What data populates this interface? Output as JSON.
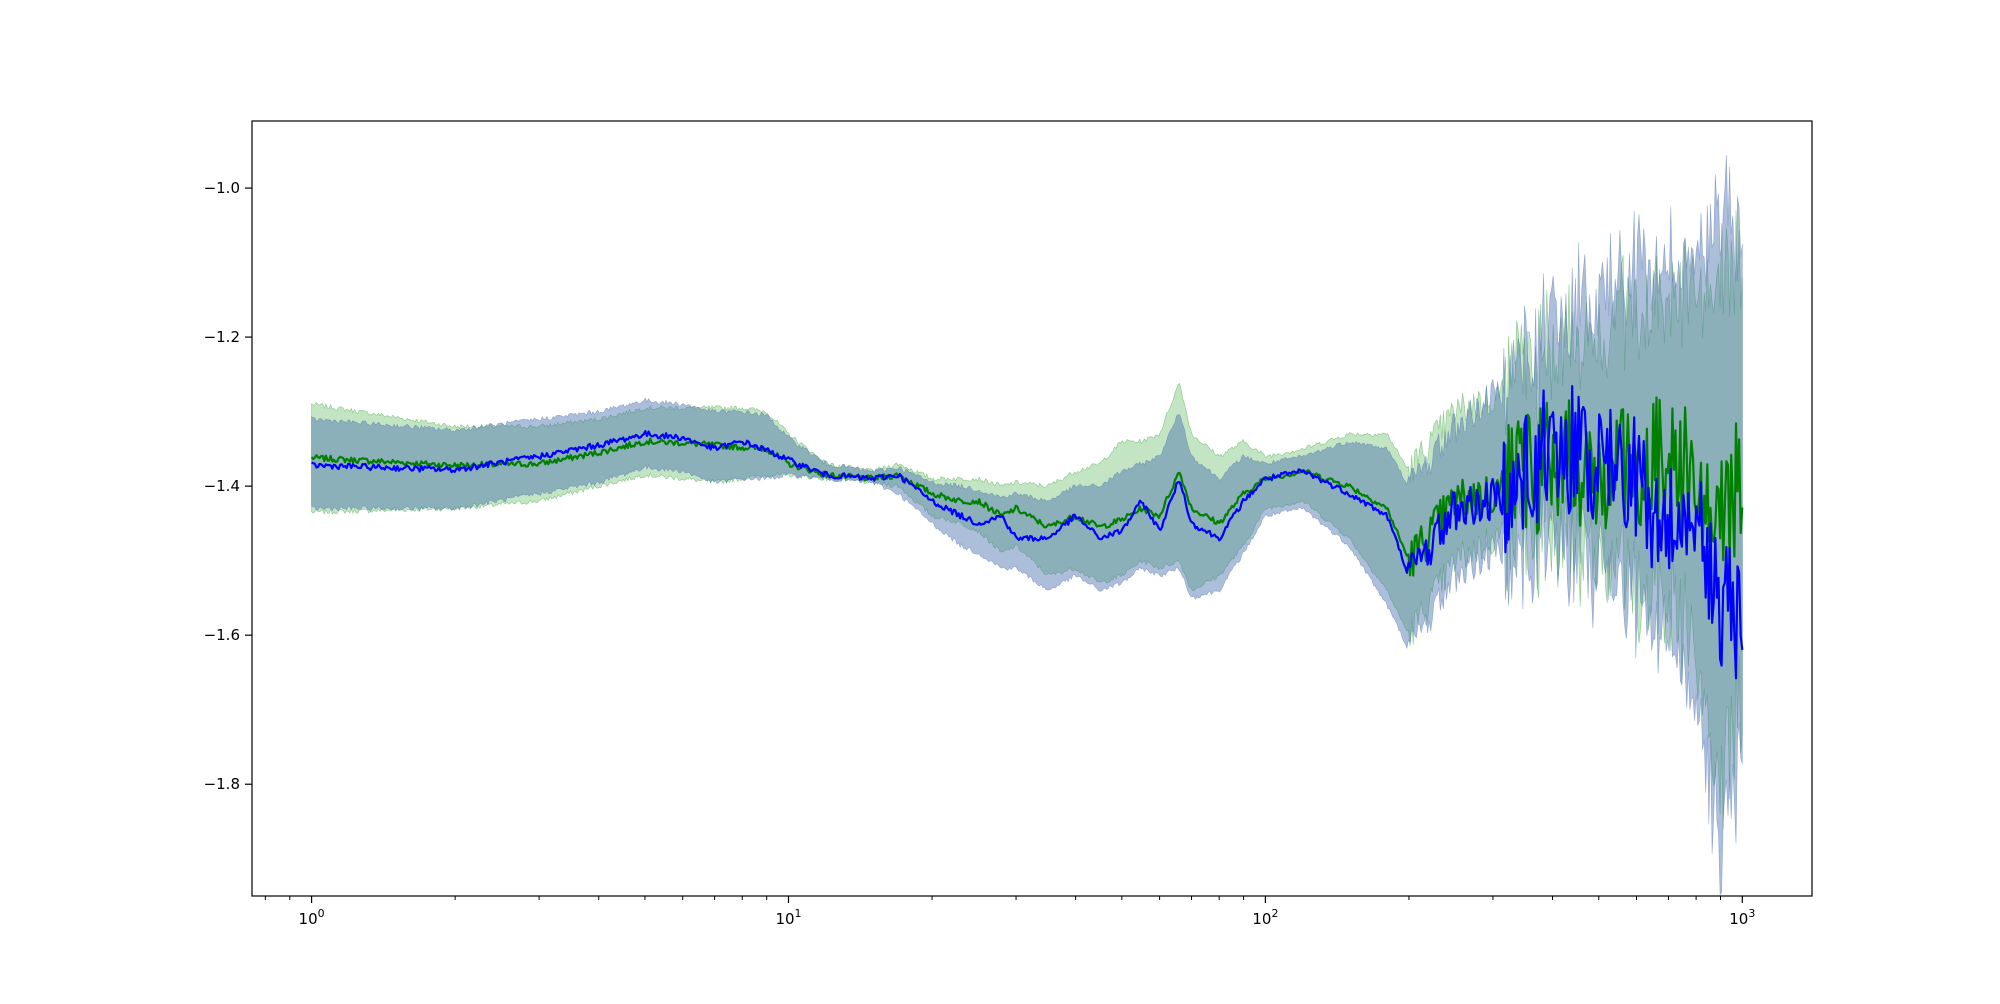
{
  "chart_data": {
    "type": "line",
    "title": "",
    "xlabel": "",
    "ylabel": "",
    "xscale": "log",
    "xlim": [
      0.75,
      1400
    ],
    "ylim": [
      -1.95,
      -0.91
    ],
    "grid": false,
    "legend": "none",
    "x_ticks": [
      {
        "value": 1,
        "base": "10",
        "exp": "0"
      },
      {
        "value": 10,
        "base": "10",
        "exp": "1"
      },
      {
        "value": 100,
        "base": "10",
        "exp": "2"
      },
      {
        "value": 1000,
        "base": "10",
        "exp": "3"
      }
    ],
    "y_ticks": [
      {
        "value": -1.0,
        "label": "−1.0"
      },
      {
        "value": -1.2,
        "label": "−1.2"
      },
      {
        "value": -1.4,
        "label": "−1.4"
      },
      {
        "value": -1.6,
        "label": "−1.6"
      },
      {
        "value": -1.8,
        "label": "−1.8"
      }
    ],
    "series": [
      {
        "color": "#008000",
        "band_color": "#2ca02c",
        "x": [
          1,
          2,
          3,
          4,
          5,
          6,
          7,
          8,
          9,
          10,
          12,
          15,
          17,
          20,
          23,
          25,
          28,
          30,
          35,
          40,
          45,
          50,
          55,
          60,
          66,
          70,
          80,
          90,
          100,
          120,
          150,
          180,
          200,
          250,
          300,
          350,
          400,
          500,
          600,
          700,
          800,
          900,
          1000
        ],
        "y": [
          -1.362,
          -1.372,
          -1.37,
          -1.355,
          -1.34,
          -1.342,
          -1.345,
          -1.348,
          -1.35,
          -1.37,
          -1.385,
          -1.39,
          -1.385,
          -1.41,
          -1.42,
          -1.42,
          -1.44,
          -1.43,
          -1.455,
          -1.44,
          -1.455,
          -1.445,
          -1.43,
          -1.44,
          -1.38,
          -1.43,
          -1.45,
          -1.41,
          -1.39,
          -1.38,
          -1.4,
          -1.43,
          -1.5,
          -1.42,
          -1.41,
          -1.38,
          -1.37,
          -1.38,
          -1.37,
          -1.36,
          -1.4,
          -1.45,
          -1.38
        ],
        "lower": [
          -1.435,
          -1.43,
          -1.42,
          -1.4,
          -1.385,
          -1.39,
          -1.395,
          -1.39,
          -1.385,
          -1.385,
          -1.39,
          -1.395,
          -1.4,
          -1.44,
          -1.45,
          -1.46,
          -1.49,
          -1.48,
          -1.52,
          -1.51,
          -1.53,
          -1.52,
          -1.5,
          -1.51,
          -1.5,
          -1.54,
          -1.52,
          -1.48,
          -1.43,
          -1.42,
          -1.47,
          -1.54,
          -1.6,
          -1.5,
          -1.47,
          -1.45,
          -1.44,
          -1.46,
          -1.5,
          -1.52,
          -1.6,
          -1.78,
          -1.65
        ],
        "upper": [
          -1.29,
          -1.32,
          -1.32,
          -1.31,
          -1.295,
          -1.295,
          -1.295,
          -1.295,
          -1.3,
          -1.33,
          -1.37,
          -1.38,
          -1.37,
          -1.39,
          -1.39,
          -1.39,
          -1.4,
          -1.395,
          -1.4,
          -1.38,
          -1.37,
          -1.34,
          -1.34,
          -1.33,
          -1.26,
          -1.33,
          -1.36,
          -1.34,
          -1.36,
          -1.35,
          -1.33,
          -1.33,
          -1.38,
          -1.3,
          -1.28,
          -1.26,
          -1.25,
          -1.22,
          -1.18,
          -1.17,
          -1.15,
          -1.15,
          -1.13
        ]
      },
      {
        "color": "#0000ff",
        "band_color": "#4a6fb0",
        "x": [
          1,
          2,
          3,
          4,
          5,
          6,
          7,
          8,
          9,
          10,
          12,
          15,
          17,
          20,
          23,
          25,
          28,
          30,
          35,
          40,
          45,
          50,
          55,
          60,
          66,
          70,
          80,
          90,
          100,
          120,
          150,
          180,
          200,
          250,
          300,
          350,
          400,
          500,
          600,
          700,
          800,
          900,
          1000
        ],
        "y": [
          -1.372,
          -1.378,
          -1.36,
          -1.345,
          -1.33,
          -1.335,
          -1.35,
          -1.34,
          -1.352,
          -1.365,
          -1.385,
          -1.39,
          -1.385,
          -1.42,
          -1.44,
          -1.45,
          -1.44,
          -1.47,
          -1.47,
          -1.44,
          -1.47,
          -1.46,
          -1.42,
          -1.46,
          -1.39,
          -1.45,
          -1.47,
          -1.42,
          -1.39,
          -1.38,
          -1.41,
          -1.44,
          -1.52,
          -1.43,
          -1.42,
          -1.38,
          -1.35,
          -1.36,
          -1.4,
          -1.45,
          -1.42,
          -1.55,
          -1.6
        ],
        "lower": [
          -1.43,
          -1.43,
          -1.41,
          -1.395,
          -1.375,
          -1.38,
          -1.395,
          -1.39,
          -1.39,
          -1.385,
          -1.39,
          -1.395,
          -1.41,
          -1.45,
          -1.48,
          -1.49,
          -1.51,
          -1.51,
          -1.54,
          -1.52,
          -1.54,
          -1.53,
          -1.51,
          -1.52,
          -1.51,
          -1.55,
          -1.54,
          -1.49,
          -1.44,
          -1.43,
          -1.48,
          -1.56,
          -1.62,
          -1.52,
          -1.49,
          -1.46,
          -1.45,
          -1.48,
          -1.53,
          -1.57,
          -1.65,
          -1.85,
          -1.75
        ],
        "upper": [
          -1.31,
          -1.325,
          -1.31,
          -1.3,
          -1.285,
          -1.29,
          -1.3,
          -1.3,
          -1.305,
          -1.335,
          -1.37,
          -1.38,
          -1.375,
          -1.395,
          -1.4,
          -1.405,
          -1.415,
          -1.41,
          -1.42,
          -1.4,
          -1.4,
          -1.38,
          -1.37,
          -1.36,
          -1.3,
          -1.36,
          -1.39,
          -1.36,
          -1.37,
          -1.36,
          -1.34,
          -1.35,
          -1.4,
          -1.32,
          -1.28,
          -1.24,
          -1.2,
          -1.17,
          -1.14,
          -1.12,
          -1.1,
          -1.05,
          -1.1
        ]
      }
    ]
  }
}
